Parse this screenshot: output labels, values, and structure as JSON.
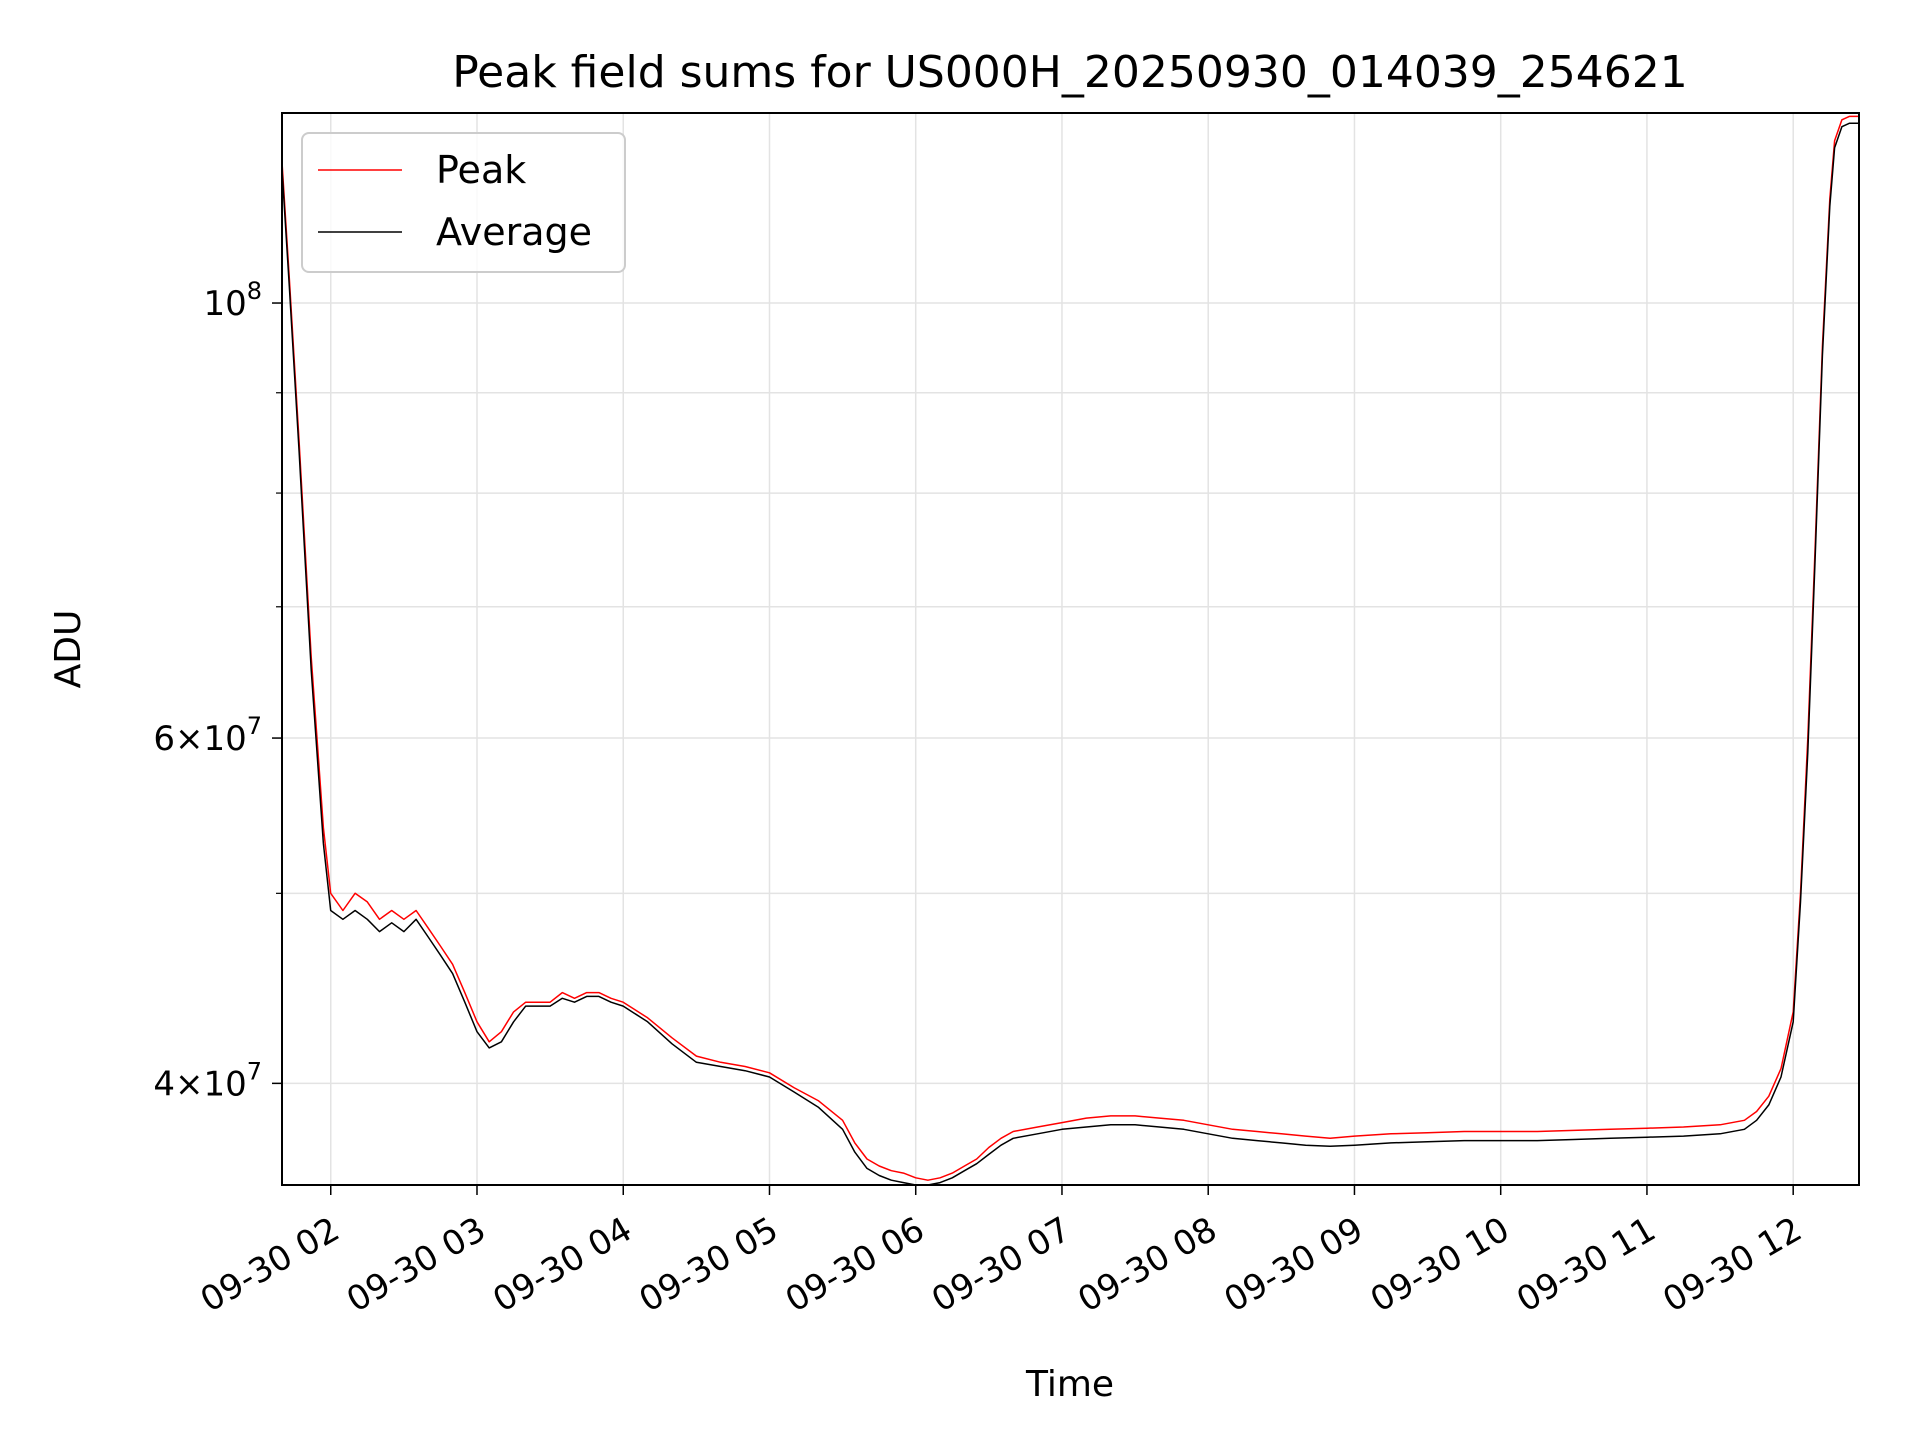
{
  "chart_data": {
    "type": "line",
    "title": "Peak field sums for US000H_20250930_014039_254621",
    "xlabel": "Time",
    "ylabel": "ADU",
    "y_scale": "log",
    "xlim": [
      "09-30 01:40",
      "09-30 12:27"
    ],
    "ylim": [
      35500000,
      125000000
    ],
    "grid": true,
    "legend_position": "upper left",
    "x_ticks": [
      "09-30 02",
      "09-30 03",
      "09-30 04",
      "09-30 05",
      "09-30 06",
      "09-30 07",
      "09-30 08",
      "09-30 09",
      "09-30 10",
      "09-30 11",
      "09-30 12"
    ],
    "y_major_ticks": [
      {
        "value": 40000000,
        "mantissa": "4",
        "exp": "7"
      },
      {
        "value": 60000000,
        "mantissa": "6",
        "exp": "7"
      },
      {
        "value": 100000000,
        "mantissa": "",
        "exp": "8"
      }
    ],
    "y_minor_ticks": [
      50000000,
      70000000,
      80000000,
      90000000
    ],
    "series": [
      {
        "name": "Peak",
        "color": "#ff0000",
        "x": [
          "09-30 01:40",
          "09-30 01:43",
          "09-30 01:47",
          "09-30 01:52",
          "09-30 01:57",
          "09-30 02:00",
          "09-30 02:05",
          "09-30 02:10",
          "09-30 02:15",
          "09-30 02:20",
          "09-30 02:25",
          "09-30 02:30",
          "09-30 02:35",
          "09-30 02:40",
          "09-30 02:45",
          "09-30 02:50",
          "09-30 02:55",
          "09-30 03:00",
          "09-30 03:05",
          "09-30 03:10",
          "09-30 03:15",
          "09-30 03:20",
          "09-30 03:25",
          "09-30 03:30",
          "09-30 03:35",
          "09-30 03:40",
          "09-30 03:45",
          "09-30 03:50",
          "09-30 03:55",
          "09-30 04:00",
          "09-30 04:10",
          "09-30 04:20",
          "09-30 04:30",
          "09-30 04:40",
          "09-30 04:50",
          "09-30 05:00",
          "09-30 05:10",
          "09-30 05:20",
          "09-30 05:30",
          "09-30 05:35",
          "09-30 05:40",
          "09-30 05:45",
          "09-30 05:50",
          "09-30 05:55",
          "09-30 06:00",
          "09-30 06:05",
          "09-30 06:10",
          "09-30 06:15",
          "09-30 06:20",
          "09-30 06:25",
          "09-30 06:30",
          "09-30 06:35",
          "09-30 06:40",
          "09-30 06:50",
          "09-30 07:00",
          "09-30 07:10",
          "09-30 07:20",
          "09-30 07:30",
          "09-30 07:40",
          "09-30 07:50",
          "09-30 08:00",
          "09-30 08:10",
          "09-30 08:20",
          "09-30 08:30",
          "09-30 08:40",
          "09-30 08:50",
          "09-30 09:00",
          "09-30 09:15",
          "09-30 09:30",
          "09-30 09:45",
          "09-30 10:00",
          "09-30 10:15",
          "09-30 10:30",
          "09-30 10:45",
          "09-30 11:00",
          "09-30 11:15",
          "09-30 11:30",
          "09-30 11:40",
          "09-30 11:45",
          "09-30 11:50",
          "09-30 11:55",
          "09-30 12:00",
          "09-30 12:03",
          "09-30 12:06",
          "09-30 12:09",
          "09-30 12:12",
          "09-30 12:15",
          "09-30 12:17",
          "09-30 12:20",
          "09-30 12:23",
          "09-30 12:27"
        ],
        "values": [
          118000000,
          103000000,
          85000000,
          66000000,
          54000000,
          50000000,
          49000000,
          50000000,
          49500000,
          48500000,
          49000000,
          48500000,
          49000000,
          48000000,
          47000000,
          46000000,
          44500000,
          43000000,
          42000000,
          42500000,
          43500000,
          44000000,
          44000000,
          44000000,
          44500000,
          44200000,
          44500000,
          44500000,
          44200000,
          44000000,
          43200000,
          42200000,
          41300000,
          41000000,
          40800000,
          40500000,
          39800000,
          39200000,
          38300000,
          37300000,
          36600000,
          36300000,
          36100000,
          36000000,
          35800000,
          35700000,
          35800000,
          36000000,
          36300000,
          36600000,
          37100000,
          37500000,
          37800000,
          38000000,
          38200000,
          38400000,
          38500000,
          38500000,
          38400000,
          38300000,
          38100000,
          37900000,
          37800000,
          37700000,
          37600000,
          37500000,
          37600000,
          37700000,
          37750000,
          37800000,
          37800000,
          37800000,
          37850000,
          37900000,
          37950000,
          38000000,
          38100000,
          38300000,
          38700000,
          39400000,
          40700000,
          43500000,
          50000000,
          60000000,
          75000000,
          95000000,
          113000000,
          121000000,
          124000000,
          124500000,
          124500000
        ]
      },
      {
        "name": "Average",
        "color": "#000000",
        "x": [
          "09-30 01:40",
          "09-30 01:43",
          "09-30 01:47",
          "09-30 01:52",
          "09-30 01:57",
          "09-30 02:00",
          "09-30 02:05",
          "09-30 02:10",
          "09-30 02:15",
          "09-30 02:20",
          "09-30 02:25",
          "09-30 02:30",
          "09-30 02:35",
          "09-30 02:40",
          "09-30 02:45",
          "09-30 02:50",
          "09-30 02:55",
          "09-30 03:00",
          "09-30 03:05",
          "09-30 03:10",
          "09-30 03:15",
          "09-30 03:20",
          "09-30 03:25",
          "09-30 03:30",
          "09-30 03:35",
          "09-30 03:40",
          "09-30 03:45",
          "09-30 03:50",
          "09-30 03:55",
          "09-30 04:00",
          "09-30 04:10",
          "09-30 04:20",
          "09-30 04:30",
          "09-30 04:40",
          "09-30 04:50",
          "09-30 05:00",
          "09-30 05:10",
          "09-30 05:20",
          "09-30 05:30",
          "09-30 05:35",
          "09-30 05:40",
          "09-30 05:45",
          "09-30 05:50",
          "09-30 05:55",
          "09-30 06:00",
          "09-30 06:05",
          "09-30 06:10",
          "09-30 06:15",
          "09-30 06:20",
          "09-30 06:25",
          "09-30 06:30",
          "09-30 06:35",
          "09-30 06:40",
          "09-30 06:50",
          "09-30 07:00",
          "09-30 07:10",
          "09-30 07:20",
          "09-30 07:30",
          "09-30 07:40",
          "09-30 07:50",
          "09-30 08:00",
          "09-30 08:10",
          "09-30 08:20",
          "09-30 08:30",
          "09-30 08:40",
          "09-30 08:50",
          "09-30 09:00",
          "09-30 09:15",
          "09-30 09:30",
          "09-30 09:45",
          "09-30 10:00",
          "09-30 10:15",
          "09-30 10:30",
          "09-30 10:45",
          "09-30 11:00",
          "09-30 11:15",
          "09-30 11:30",
          "09-30 11:40",
          "09-30 11:45",
          "09-30 11:50",
          "09-30 11:55",
          "09-30 12:00",
          "09-30 12:03",
          "09-30 12:06",
          "09-30 12:09",
          "09-30 12:12",
          "09-30 12:15",
          "09-30 12:17",
          "09-30 12:20",
          "09-30 12:23",
          "09-30 12:27"
        ],
        "values": [
          117000000,
          102000000,
          84000000,
          65000000,
          53000000,
          49000000,
          48500000,
          49000000,
          48500000,
          47800000,
          48300000,
          47800000,
          48500000,
          47500000,
          46500000,
          45500000,
          44000000,
          42500000,
          41700000,
          42000000,
          43000000,
          43800000,
          43800000,
          43800000,
          44200000,
          44000000,
          44300000,
          44300000,
          44000000,
          43800000,
          43000000,
          41900000,
          41000000,
          40800000,
          40600000,
          40300000,
          39600000,
          38900000,
          37900000,
          36900000,
          36200000,
          35900000,
          35700000,
          35600000,
          35500000,
          35500000,
          35600000,
          35800000,
          36100000,
          36400000,
          36800000,
          37200000,
          37500000,
          37700000,
          37900000,
          38000000,
          38100000,
          38100000,
          38000000,
          37900000,
          37700000,
          37500000,
          37400000,
          37300000,
          37200000,
          37150000,
          37200000,
          37300000,
          37350000,
          37400000,
          37400000,
          37400000,
          37450000,
          37500000,
          37550000,
          37600000,
          37700000,
          37900000,
          38300000,
          39000000,
          40300000,
          43000000,
          49500000,
          59000000,
          74000000,
          94000000,
          112000000,
          120000000,
          123000000,
          123500000,
          123500000
        ]
      }
    ]
  }
}
